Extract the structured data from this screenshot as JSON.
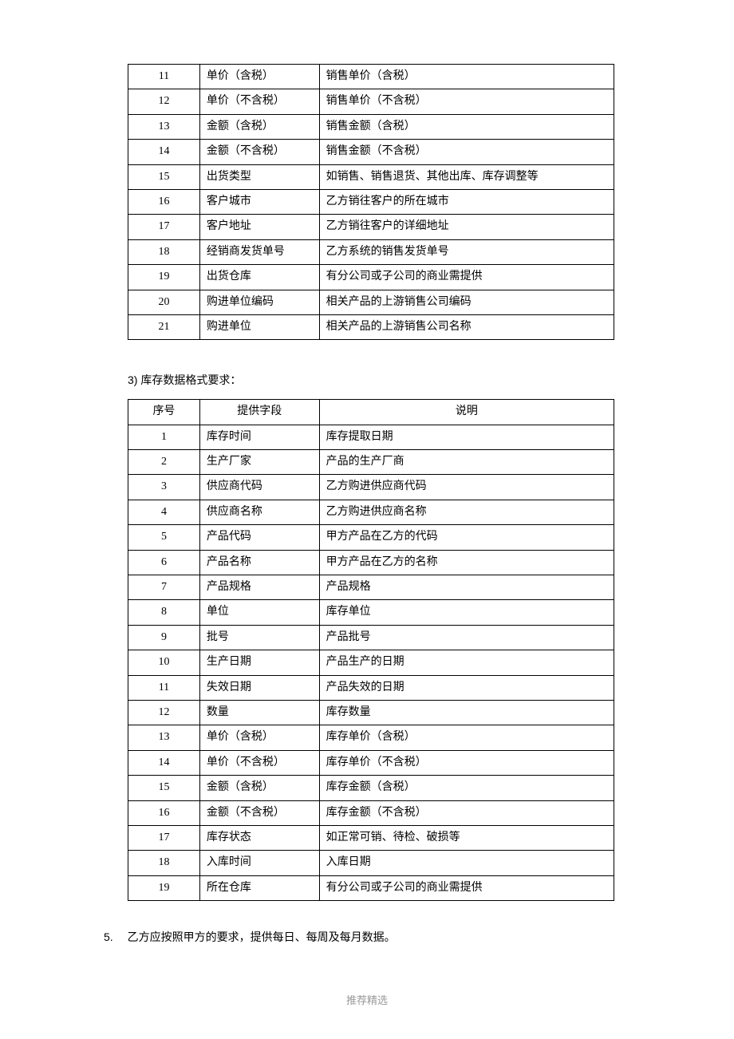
{
  "table1": {
    "rows": [
      {
        "seq": "11",
        "field": "单价（含税）",
        "desc": "销售单价（含税）"
      },
      {
        "seq": "12",
        "field": "单价（不含税）",
        "desc": "销售单价（不含税）"
      },
      {
        "seq": "13",
        "field": "金额（含税）",
        "desc": "销售金额（含税）"
      },
      {
        "seq": "14",
        "field": "金额（不含税）",
        "desc": "销售金额（不含税）"
      },
      {
        "seq": "15",
        "field": "出货类型",
        "desc": "如销售、销售退货、其他出库、库存调整等"
      },
      {
        "seq": "16",
        "field": "客户城市",
        "desc": "乙方销往客户的所在城市"
      },
      {
        "seq": "17",
        "field": "客户地址",
        "desc": "乙方销往客户的详细地址"
      },
      {
        "seq": "18",
        "field": "经销商发货单号",
        "desc": "乙方系统的销售发货单号"
      },
      {
        "seq": "19",
        "field": "出货仓库",
        "desc": "有分公司或子公司的商业需提供"
      },
      {
        "seq": "20",
        "field": "购进单位编码",
        "desc": "相关产品的上游销售公司编码"
      },
      {
        "seq": "21",
        "field": "购进单位",
        "desc": "相关产品的上游销售公司名称"
      }
    ]
  },
  "section3": {
    "number": "3)",
    "title": "库存数据格式要求："
  },
  "table2": {
    "headers": {
      "seq": "序号",
      "field": "提供字段",
      "desc": "说明"
    },
    "rows": [
      {
        "seq": "1",
        "field": "库存时间",
        "desc": "库存提取日期"
      },
      {
        "seq": "2",
        "field": "生产厂家",
        "desc": "产品的生产厂商"
      },
      {
        "seq": "3",
        "field": "供应商代码",
        "desc": "乙方购进供应商代码"
      },
      {
        "seq": "4",
        "field": "供应商名称",
        "desc": "乙方购进供应商名称"
      },
      {
        "seq": "5",
        "field": "产品代码",
        "desc": "甲方产品在乙方的代码"
      },
      {
        "seq": "6",
        "field": "产品名称",
        "desc": "甲方产品在乙方的名称"
      },
      {
        "seq": "7",
        "field": "产品规格",
        "desc": "产品规格"
      },
      {
        "seq": "8",
        "field": "单位",
        "desc": "库存单位"
      },
      {
        "seq": "9",
        "field": "批号",
        "desc": "产品批号"
      },
      {
        "seq": "10",
        "field": "生产日期",
        "desc": "产品生产的日期"
      },
      {
        "seq": "11",
        "field": "失效日期",
        "desc": "产品失效的日期"
      },
      {
        "seq": "12",
        "field": "数量",
        "desc": "库存数量"
      },
      {
        "seq": "13",
        "field": "单价（含税）",
        "desc": "库存单价（含税）"
      },
      {
        "seq": "14",
        "field": "单价（不含税）",
        "desc": "库存单价（不含税）"
      },
      {
        "seq": "15",
        "field": "金额（含税）",
        "desc": "库存金额（含税）"
      },
      {
        "seq": "16",
        "field": "金额（不含税）",
        "desc": "库存金额（不含税）"
      },
      {
        "seq": "17",
        "field": "库存状态",
        "desc": "如正常可销、待检、破损等"
      },
      {
        "seq": "18",
        "field": "入库时间",
        "desc": "入库日期"
      },
      {
        "seq": "19",
        "field": "所在仓库",
        "desc": "有分公司或子公司的商业需提供"
      }
    ]
  },
  "item5": {
    "number": "5.",
    "text": "乙方应按照甲方的要求，提供每日、每周及每月数据。"
  },
  "footer": "推荐精选"
}
